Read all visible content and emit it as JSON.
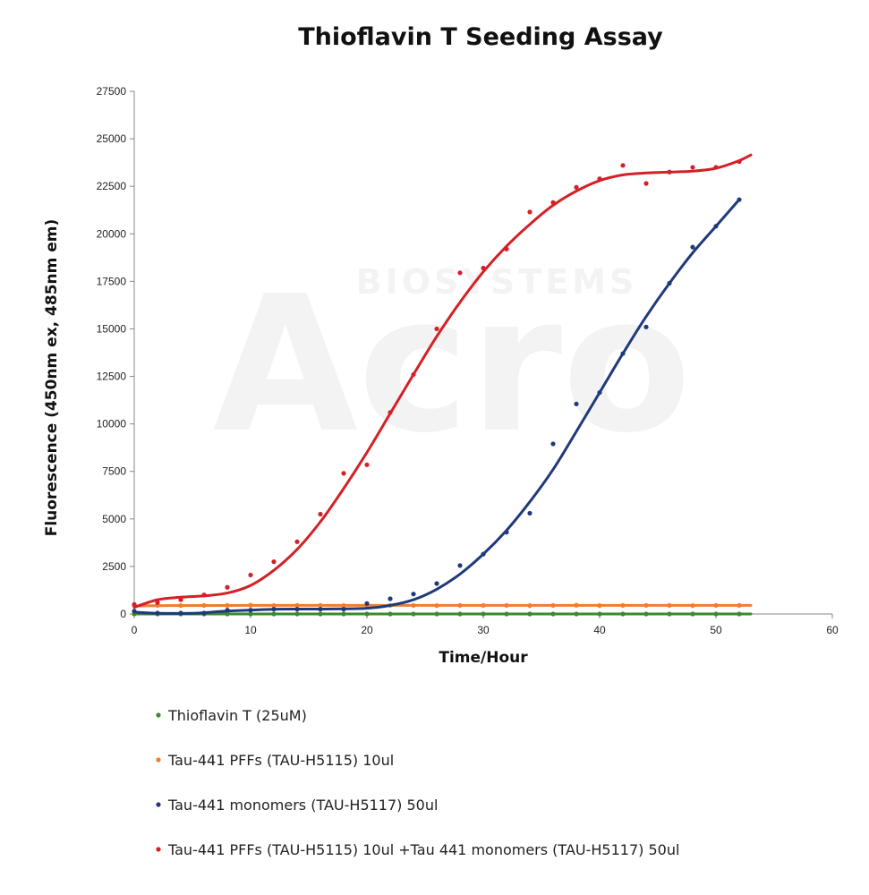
{
  "chart_data": {
    "type": "scatter",
    "title": "Thioflavin T Seeding Assay",
    "xlabel": "Time/Hour",
    "ylabel": "Fluorescence (450nm ex, 485nm em)",
    "xlim": [
      0,
      60
    ],
    "ylim": [
      0,
      27500
    ],
    "xticks": [
      "0",
      "10",
      "20",
      "30",
      "40",
      "50",
      "60"
    ],
    "yticks": [
      "0",
      "2500",
      "5000",
      "7500",
      "10000",
      "12500",
      "15000",
      "17500",
      "20000",
      "22500",
      "25000",
      "27500"
    ],
    "grid": false,
    "legend_position": "bottom",
    "watermark": {
      "big": "Acro",
      "small": "BIOSYSTEMS"
    },
    "series": [
      {
        "name": "Thioflavin T (25uM)",
        "color": "#3a8a2e",
        "x": [
          0,
          2,
          4,
          6,
          8,
          10,
          12,
          14,
          16,
          18,
          20,
          22,
          24,
          26,
          28,
          30,
          32,
          34,
          36,
          38,
          40,
          42,
          44,
          46,
          48,
          50,
          52
        ],
        "y": [
          0,
          0,
          0,
          0,
          0,
          0,
          0,
          0,
          0,
          0,
          0,
          0,
          0,
          0,
          0,
          0,
          0,
          0,
          0,
          0,
          0,
          0,
          0,
          0,
          0,
          0,
          0
        ],
        "fit": [
          [
            0,
            0
          ],
          [
            53,
            0
          ]
        ]
      },
      {
        "name": "Tau-441 PFFs (TAU-H5115) 10ul",
        "color": "#ed7d31",
        "x": [
          0,
          2,
          4,
          6,
          8,
          10,
          12,
          14,
          16,
          18,
          20,
          22,
          24,
          26,
          28,
          30,
          32,
          34,
          36,
          38,
          40,
          42,
          44,
          46,
          48,
          50,
          52
        ],
        "y": [
          450,
          450,
          440,
          450,
          450,
          460,
          440,
          450,
          450,
          440,
          460,
          450,
          450,
          440,
          450,
          450,
          450,
          440,
          450,
          460,
          440,
          450,
          450,
          450,
          440,
          450,
          450
        ],
        "fit": [
          [
            0,
            420
          ],
          [
            2,
            440
          ],
          [
            10,
            450
          ],
          [
            53,
            450
          ]
        ]
      },
      {
        "name": "Tau-441 monomers (TAU-H5117) 50ul",
        "color": "#1f3a7a",
        "x": [
          0,
          2,
          4,
          6,
          8,
          10,
          12,
          14,
          16,
          18,
          20,
          22,
          24,
          26,
          28,
          30,
          32,
          34,
          36,
          38,
          40,
          42,
          44,
          46,
          48,
          50,
          52
        ],
        "y": [
          150,
          50,
          50,
          50,
          200,
          200,
          250,
          250,
          250,
          250,
          550,
          800,
          1050,
          1600,
          2550,
          3150,
          4300,
          5300,
          8950,
          11050,
          11650,
          13700,
          15100,
          17400,
          19300,
          20400,
          21800
        ],
        "fit": [
          [
            0,
            100
          ],
          [
            2,
            40
          ],
          [
            5,
            40
          ],
          [
            8,
            150
          ],
          [
            12,
            250
          ],
          [
            16,
            260
          ],
          [
            20,
            300
          ],
          [
            22,
            450
          ],
          [
            24,
            750
          ],
          [
            26,
            1300
          ],
          [
            28,
            2100
          ],
          [
            30,
            3150
          ],
          [
            32,
            4400
          ],
          [
            34,
            5900
          ],
          [
            36,
            7600
          ],
          [
            38,
            9600
          ],
          [
            40,
            11650
          ],
          [
            42,
            13700
          ],
          [
            44,
            15650
          ],
          [
            46,
            17400
          ],
          [
            48,
            19000
          ],
          [
            50,
            20400
          ],
          [
            52,
            21800
          ]
        ]
      },
      {
        "name": "Tau-441 PFFs (TAU-H5115) 10ul +Tau 441 monomers (TAU-H5117) 50ul",
        "color": "#d42027",
        "x": [
          0,
          2,
          4,
          6,
          8,
          10,
          12,
          14,
          16,
          18,
          20,
          22,
          24,
          26,
          28,
          30,
          32,
          34,
          36,
          38,
          40,
          42,
          44,
          46,
          48,
          50,
          52
        ],
        "y": [
          500,
          600,
          750,
          1000,
          1400,
          2050,
          2750,
          3800,
          5250,
          7400,
          7850,
          10600,
          12600,
          15000,
          17950,
          18200,
          19200,
          21150,
          21650,
          22450,
          22900,
          23600,
          22650,
          23250,
          23500,
          23500,
          23800
        ],
        "fit": [
          [
            0,
            350
          ],
          [
            2,
            750
          ],
          [
            4,
            880
          ],
          [
            6,
            950
          ],
          [
            8,
            1100
          ],
          [
            10,
            1500
          ],
          [
            12,
            2300
          ],
          [
            14,
            3400
          ],
          [
            16,
            4850
          ],
          [
            18,
            6600
          ],
          [
            20,
            8500
          ],
          [
            22,
            10550
          ],
          [
            24,
            12600
          ],
          [
            26,
            14600
          ],
          [
            28,
            16400
          ],
          [
            30,
            18000
          ],
          [
            32,
            19350
          ],
          [
            34,
            20500
          ],
          [
            36,
            21500
          ],
          [
            38,
            22250
          ],
          [
            40,
            22800
          ],
          [
            42,
            23100
          ],
          [
            44,
            23200
          ],
          [
            46,
            23250
          ],
          [
            48,
            23300
          ],
          [
            50,
            23450
          ],
          [
            52,
            23850
          ],
          [
            53,
            24150
          ]
        ]
      }
    ]
  }
}
